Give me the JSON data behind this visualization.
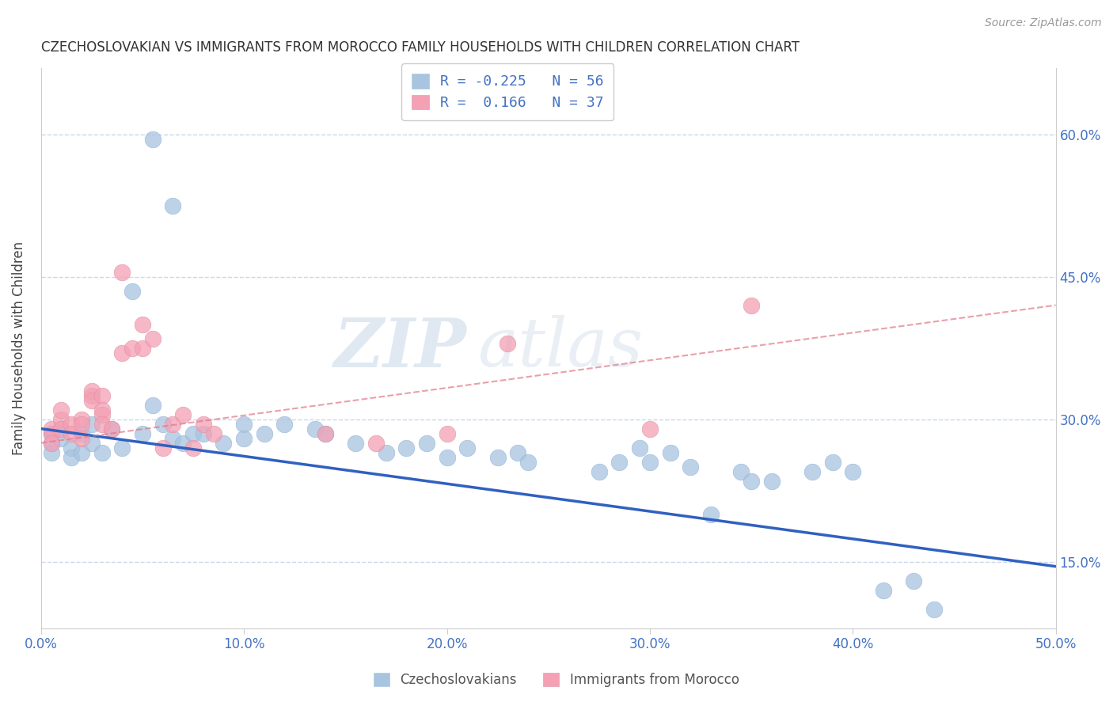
{
  "title": "CZECHOSLOVAKIAN VS IMMIGRANTS FROM MOROCCO FAMILY HOUSEHOLDS WITH CHILDREN CORRELATION CHART",
  "source": "Source: ZipAtlas.com",
  "ylabel": "Family Households with Children",
  "xlim": [
    0.0,
    0.5
  ],
  "ylim": [
    0.08,
    0.67
  ],
  "xticks": [
    0.0,
    0.1,
    0.2,
    0.3,
    0.4,
    0.5
  ],
  "yticks_right": [
    0.15,
    0.3,
    0.45,
    0.6
  ],
  "ytick_labels_right": [
    "15.0%",
    "30.0%",
    "45.0%",
    "60.0%"
  ],
  "xtick_labels": [
    "0.0%",
    "10.0%",
    "20.0%",
    "30.0%",
    "40.0%",
    "50.0%"
  ],
  "blue_color": "#a8c4e0",
  "pink_color": "#f4a0b5",
  "blue_line_color": "#3060c0",
  "pink_line_color": "#e07888",
  "grid_color": "#c8d8ee",
  "blue_scatter_x": [
    0.055,
    0.065,
    0.005,
    0.005,
    0.005,
    0.01,
    0.01,
    0.015,
    0.015,
    0.02,
    0.02,
    0.025,
    0.025,
    0.03,
    0.035,
    0.04,
    0.045,
    0.05,
    0.055,
    0.06,
    0.065,
    0.07,
    0.075,
    0.08,
    0.09,
    0.1,
    0.1,
    0.11,
    0.12,
    0.135,
    0.14,
    0.155,
    0.17,
    0.18,
    0.19,
    0.2,
    0.21,
    0.225,
    0.235,
    0.24,
    0.275,
    0.285,
    0.295,
    0.3,
    0.31,
    0.32,
    0.33,
    0.345,
    0.35,
    0.36,
    0.38,
    0.39,
    0.4,
    0.415,
    0.43,
    0.44
  ],
  "blue_scatter_y": [
    0.595,
    0.525,
    0.285,
    0.275,
    0.265,
    0.29,
    0.28,
    0.27,
    0.26,
    0.285,
    0.265,
    0.275,
    0.295,
    0.265,
    0.29,
    0.27,
    0.435,
    0.285,
    0.315,
    0.295,
    0.28,
    0.275,
    0.285,
    0.285,
    0.275,
    0.295,
    0.28,
    0.285,
    0.295,
    0.29,
    0.285,
    0.275,
    0.265,
    0.27,
    0.275,
    0.26,
    0.27,
    0.26,
    0.265,
    0.255,
    0.245,
    0.255,
    0.27,
    0.255,
    0.265,
    0.25,
    0.2,
    0.245,
    0.235,
    0.235,
    0.245,
    0.255,
    0.245,
    0.12,
    0.13,
    0.1
  ],
  "pink_scatter_x": [
    0.005,
    0.005,
    0.005,
    0.01,
    0.01,
    0.01,
    0.015,
    0.015,
    0.02,
    0.02,
    0.02,
    0.025,
    0.025,
    0.025,
    0.03,
    0.03,
    0.03,
    0.03,
    0.035,
    0.04,
    0.04,
    0.045,
    0.05,
    0.05,
    0.055,
    0.06,
    0.065,
    0.07,
    0.075,
    0.08,
    0.085,
    0.14,
    0.165,
    0.2,
    0.23,
    0.3,
    0.35
  ],
  "pink_scatter_y": [
    0.285,
    0.29,
    0.275,
    0.3,
    0.31,
    0.29,
    0.295,
    0.285,
    0.3,
    0.295,
    0.28,
    0.325,
    0.33,
    0.32,
    0.325,
    0.31,
    0.305,
    0.295,
    0.29,
    0.455,
    0.37,
    0.375,
    0.4,
    0.375,
    0.385,
    0.27,
    0.295,
    0.305,
    0.27,
    0.295,
    0.285,
    0.285,
    0.275,
    0.285,
    0.38,
    0.29,
    0.42
  ],
  "blue_line_x": [
    0.0,
    0.5
  ],
  "blue_line_y": [
    0.29,
    0.145
  ],
  "pink_line_x": [
    0.0,
    0.5
  ],
  "pink_line_y": [
    0.275,
    0.42
  ],
  "legend_blue_R": "R = -0.225",
  "legend_blue_N": "N = 56",
  "legend_pink_R": "R =  0.166",
  "legend_pink_N": "N = 37"
}
